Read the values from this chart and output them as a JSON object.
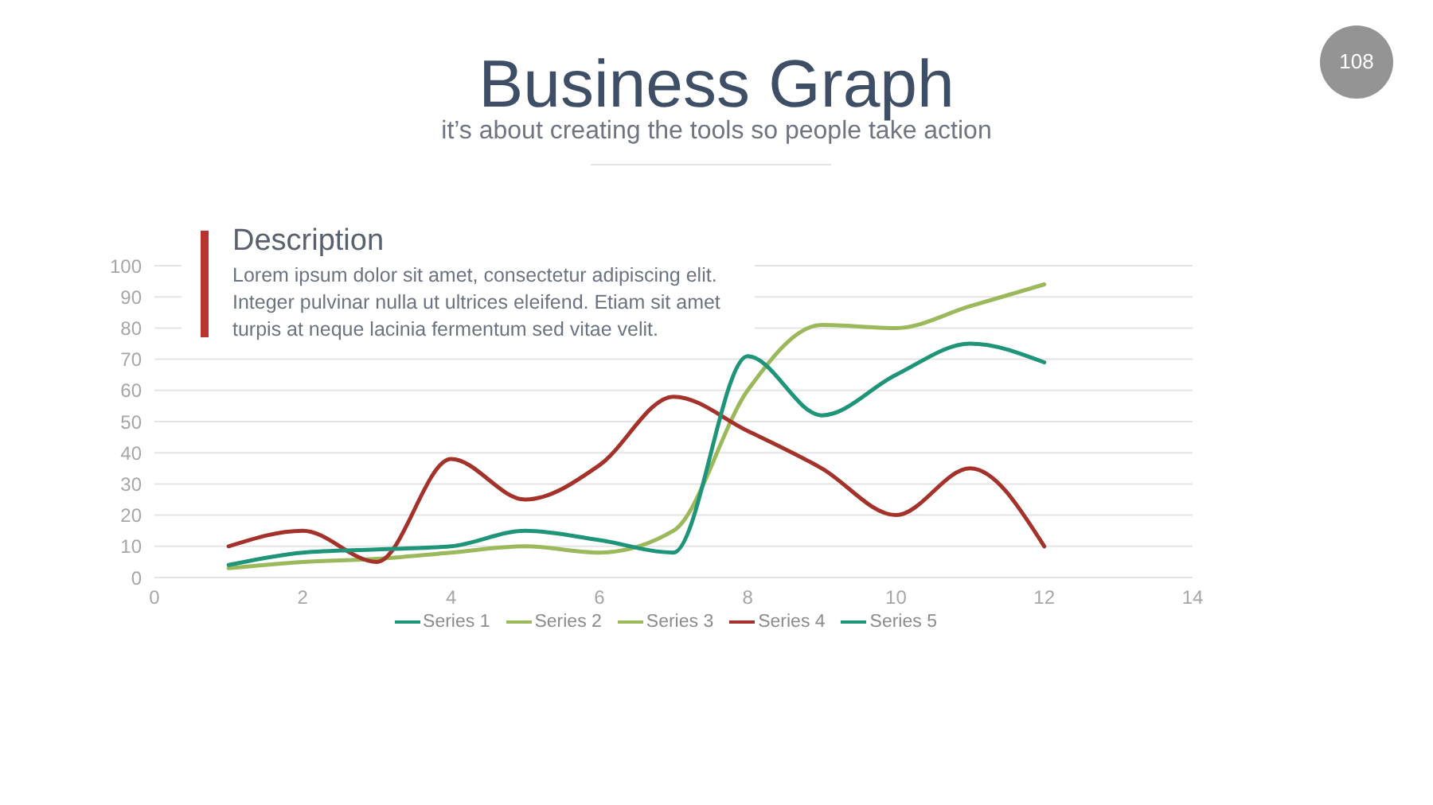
{
  "chart_data": {
    "type": "line",
    "title": "Business Graph",
    "subtitle": "it’s about creating the tools so people take action",
    "annotations": [
      "Description",
      "Lorem ipsum dolor sit amet, consectetur adipiscing elit. Integer pulvinar nulla ut ultrices eleifend. Etiam sit amet turpis at neque lacinia fermentum sed vitae velit.",
      "108"
    ],
    "x": [
      1,
      2,
      3,
      4,
      5,
      6,
      7,
      8,
      9,
      10,
      11,
      12
    ],
    "series": [
      {
        "name": "Series 1",
        "color": "#1e9479",
        "values": [
          null,
          null,
          null,
          null,
          null,
          null,
          null,
          null,
          null,
          null,
          null,
          null
        ]
      },
      {
        "name": "Series 2",
        "color": "#9bb85b",
        "values": [
          null,
          null,
          null,
          null,
          null,
          null,
          null,
          null,
          null,
          null,
          null,
          null
        ]
      },
      {
        "name": "Series 3",
        "color": "#9bb85b",
        "values": [
          3,
          5,
          6,
          8,
          10,
          8,
          15,
          60,
          81,
          80,
          87,
          94
        ]
      },
      {
        "name": "Series 4",
        "color": "#a4322b",
        "values": [
          10,
          15,
          5,
          38,
          25,
          36,
          58,
          47,
          35,
          20,
          35,
          10
        ]
      },
      {
        "name": "Series 5",
        "color": "#1e9479",
        "values": [
          4,
          8,
          9,
          10,
          15,
          12,
          8,
          71,
          52,
          65,
          75,
          69
        ]
      }
    ],
    "xlim": [
      0,
      14
    ],
    "xticks": [
      0,
      2,
      4,
      6,
      8,
      10,
      12,
      14
    ],
    "ylim": [
      0,
      100
    ],
    "yticks": [
      0,
      10,
      20,
      30,
      40,
      50,
      60,
      70,
      80,
      90,
      100
    ],
    "grid": "y",
    "legend": "bottom"
  }
}
